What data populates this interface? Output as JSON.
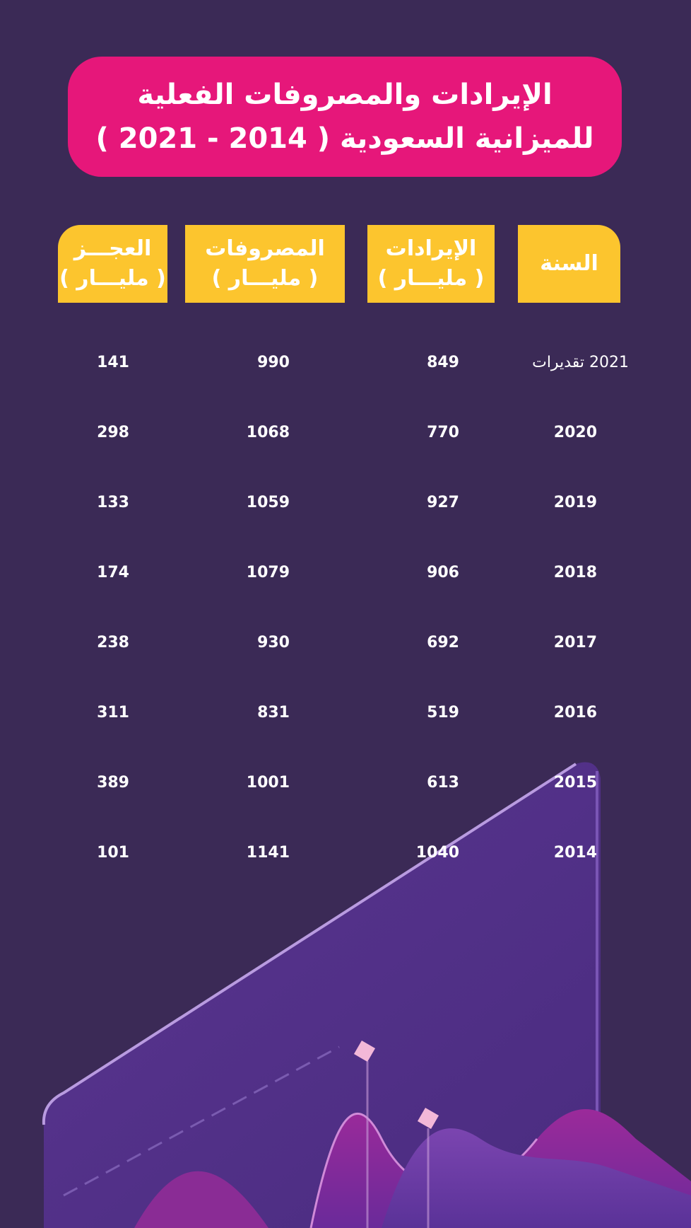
{
  "title": {
    "line1": "الإيرادات والمصروفات الفعلية",
    "line2": "للميزانية السعودية ( 2014 - 2021 )"
  },
  "colors": {
    "background": "#3b2a56",
    "title_bg": "#e6177a",
    "header_bg": "#fcc52e"
  },
  "chart_data": {
    "type": "table",
    "columns": [
      {
        "label": "السنة",
        "unit": ""
      },
      {
        "label": "الإيرادات",
        "unit": "( مليـــار )"
      },
      {
        "label": "المصروفات",
        "unit": "( مليـــار )"
      },
      {
        "label": "العجـــز",
        "unit": "( مليـــار )"
      }
    ],
    "rows": [
      {
        "year": "2021 تقديرات",
        "revenue": "849",
        "expenses": "990",
        "deficit": "141"
      },
      {
        "year": "2020",
        "revenue": "770",
        "expenses": "1068",
        "deficit": "298"
      },
      {
        "year": "2019",
        "revenue": "927",
        "expenses": "1059",
        "deficit": "133"
      },
      {
        "year": "2018",
        "revenue": "906",
        "expenses": "1079",
        "deficit": "174"
      },
      {
        "year": "2017",
        "revenue": "692",
        "expenses": "930",
        "deficit": "238"
      },
      {
        "year": "2016",
        "revenue": "519",
        "expenses": "831",
        "deficit": "311"
      },
      {
        "year": "2015",
        "revenue": "613",
        "expenses": "1001",
        "deficit": "389"
      },
      {
        "year": "2014",
        "revenue": "1040",
        "expenses": "1141",
        "deficit": "101"
      }
    ]
  }
}
